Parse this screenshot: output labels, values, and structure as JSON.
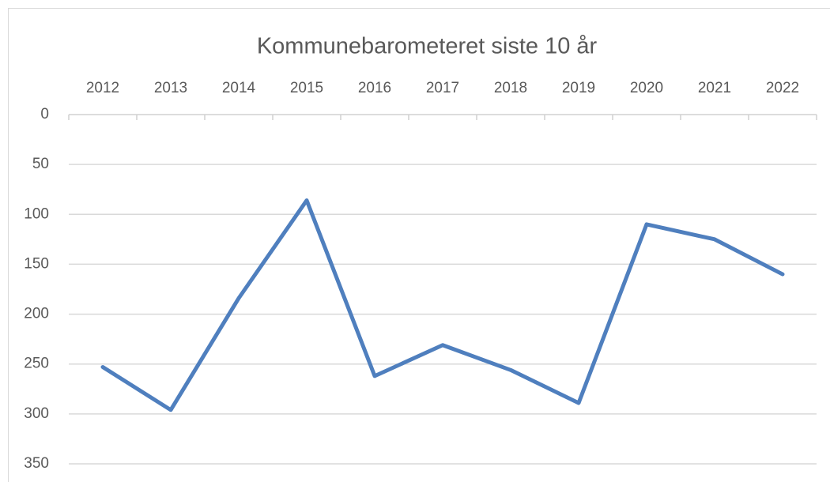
{
  "chart_data": {
    "type": "line",
    "title": "Kommunebarometeret  siste 10 år",
    "categories": [
      "2012",
      "2013",
      "2014",
      "2015",
      "2016",
      "2017",
      "2018",
      "2019",
      "2020",
      "2021",
      "2022"
    ],
    "series": [
      {
        "name": "Kommunebarometeret",
        "color": "#4f7fbe",
        "values": [
          253,
          296,
          184,
          86,
          262,
          231,
          256,
          289,
          110,
          125,
          160
        ]
      }
    ],
    "ylim": [
      0,
      350
    ],
    "yticks": [
      0,
      50,
      100,
      150,
      200,
      250,
      300,
      350
    ],
    "y_inverted": true,
    "x_axis_position": "top",
    "grid": true,
    "legend": false
  }
}
